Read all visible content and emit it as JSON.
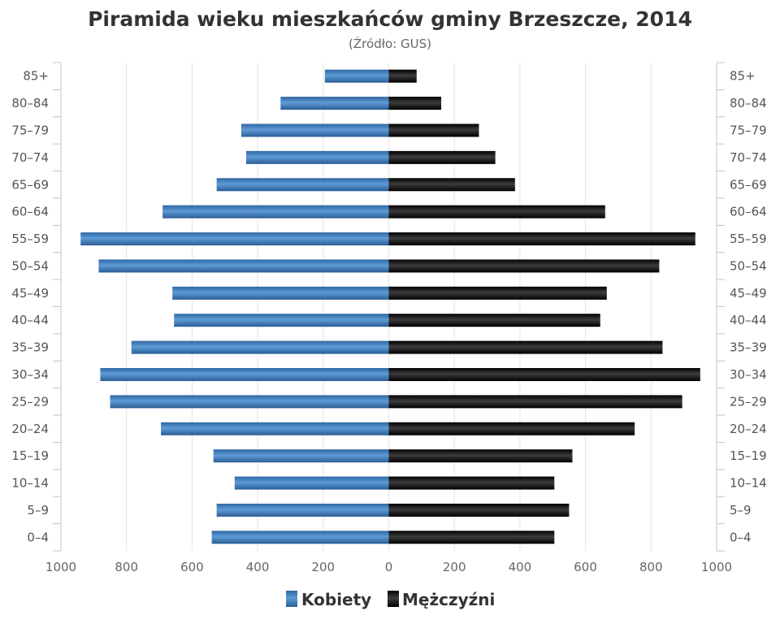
{
  "chart_data": {
    "type": "bar",
    "orientation": "horizontal",
    "layout": "population-pyramid",
    "title": "Piramida wieku mieszkańców gminy Brzeszcze, 2014",
    "subtitle": "(Źródło: GUS)",
    "categories": [
      "85+",
      "80–84",
      "75–79",
      "70–74",
      "65–69",
      "60–64",
      "55–59",
      "50–54",
      "45–49",
      "40–44",
      "35–39",
      "30–34",
      "25–29",
      "20–24",
      "15–19",
      "10–14",
      "5–9",
      "0–4"
    ],
    "series": [
      {
        "name": "Kobiety",
        "color": "#3b78b8",
        "values": [
          195,
          330,
          450,
          435,
          525,
          690,
          940,
          885,
          660,
          655,
          785,
          880,
          850,
          695,
          535,
          470,
          525,
          540
        ]
      },
      {
        "name": "Mężczyźni",
        "color": "#111111",
        "values": [
          85,
          160,
          275,
          325,
          385,
          660,
          935,
          825,
          665,
          645,
          835,
          950,
          895,
          750,
          560,
          505,
          550,
          505
        ]
      }
    ],
    "xlim": [
      -1000,
      1000
    ],
    "x_tick_labels": [
      "1000",
      "800",
      "600",
      "400",
      "200",
      "0",
      "200",
      "400",
      "600",
      "800",
      "1000"
    ],
    "grid": true,
    "legend": "bottom"
  }
}
